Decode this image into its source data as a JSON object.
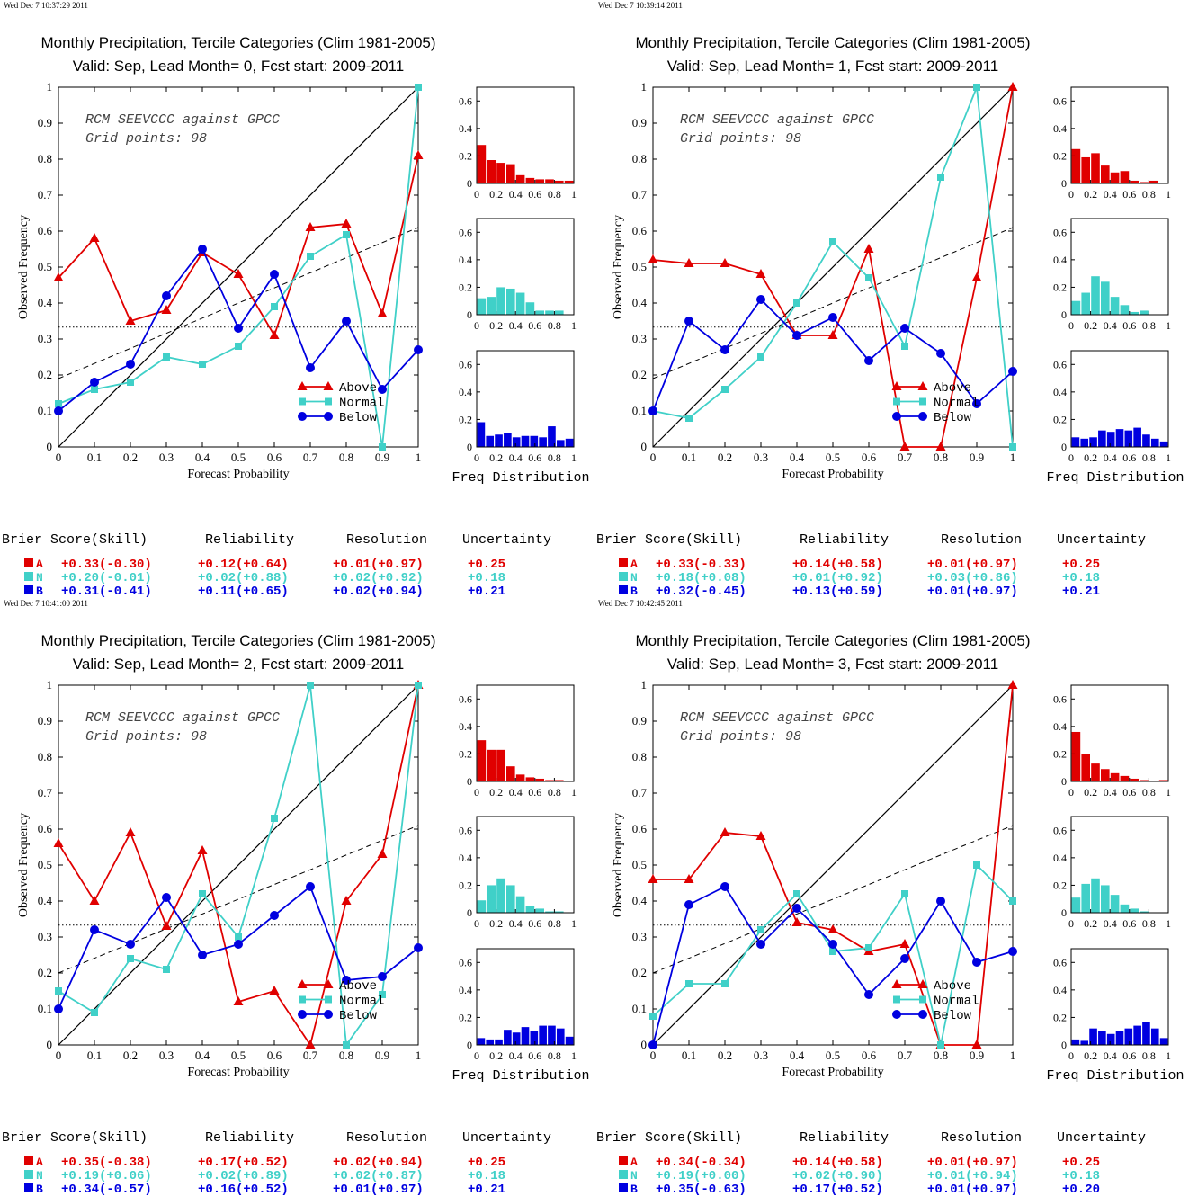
{
  "colors": {
    "above": "#e00000",
    "normal": "#40d0c8",
    "below": "#0000e0",
    "axis": "#000000"
  },
  "common": {
    "xlabel": "Forecast Probability",
    "ylabel": "Observed Frequency",
    "annotation_line1": "RCM SEEVCCC against GPCC",
    "annotation_line2": "Grid points:    98",
    "freq_label": "Freq Distribution",
    "legend": [
      "Above",
      "Normal",
      "Below"
    ],
    "score_header": [
      "Brier Score(Skill)",
      "Reliability",
      "Resolution",
      "Uncertainty"
    ],
    "cat_letters": [
      "A",
      "N",
      "B"
    ],
    "x_ticks": [
      "0",
      "0.1",
      "0.2",
      "0.3",
      "0.4",
      "0.5",
      "0.6",
      "0.7",
      "0.8",
      "0.9",
      "1"
    ],
    "y_ticks": [
      "0",
      "0.1",
      "0.2",
      "0.3",
      "0.4",
      "0.5",
      "0.6",
      "0.7",
      "0.8",
      "0.9",
      "1"
    ],
    "hist_x_ticks": [
      "0",
      "0.2",
      "0.4",
      "0.6",
      "0.8",
      "1"
    ],
    "hist_y_ticks": [
      "0",
      "0.2",
      "0.4",
      "0.6"
    ],
    "climatology": 0.333
  },
  "chart_data": [
    {
      "type": "line",
      "timestamp": "Wed Dec  7 10:37:29 2011",
      "title": "Monthly Precipitation, Tercile Categories (Clim 1981-2005)",
      "subtitle": "Valid: Sep, Lead Month= 0, Fcst start: 2009-2011",
      "x": [
        0,
        0.1,
        0.2,
        0.3,
        0.4,
        0.5,
        0.6,
        0.7,
        0.8,
        0.9,
        1
      ],
      "series": [
        {
          "name": "Above",
          "values": [
            0.47,
            0.58,
            0.35,
            0.38,
            0.54,
            0.48,
            0.31,
            0.61,
            0.62,
            0.37,
            0.81
          ]
        },
        {
          "name": "Normal",
          "values": [
            0.12,
            0.16,
            0.18,
            0.25,
            0.23,
            0.28,
            0.39,
            0.53,
            0.59,
            0.0,
            1.0
          ]
        },
        {
          "name": "Below",
          "values": [
            0.1,
            0.18,
            0.23,
            0.42,
            0.55,
            0.33,
            0.48,
            0.22,
            0.35,
            0.16,
            0.27
          ]
        }
      ],
      "fit_line": [
        0.19,
        0.61
      ],
      "histograms": {
        "Above": [
          0.28,
          0.17,
          0.15,
          0.14,
          0.06,
          0.04,
          0.03,
          0.03,
          0.02,
          0.02
        ],
        "Normal": [
          0.12,
          0.13,
          0.2,
          0.19,
          0.16,
          0.09,
          0.03,
          0.03,
          0.03,
          0.0
        ],
        "Below": [
          0.18,
          0.08,
          0.09,
          0.1,
          0.07,
          0.08,
          0.08,
          0.07,
          0.15,
          0.05,
          0.06
        ]
      },
      "scores": [
        [
          "+0.33(-0.30)",
          "+0.12(+0.64)",
          "+0.01(+0.97)",
          "+0.25"
        ],
        [
          "+0.20(-0.01)",
          "+0.02(+0.88)",
          "+0.02(+0.92)",
          "+0.18"
        ],
        [
          "+0.31(-0.41)",
          "+0.11(+0.65)",
          "+0.02(+0.94)",
          "+0.21"
        ]
      ]
    },
    {
      "type": "line",
      "timestamp": "Wed Dec  7 10:39:14 2011",
      "title": "Monthly Precipitation, Tercile Categories (Clim 1981-2005)",
      "subtitle": "Valid: Sep, Lead Month= 1, Fcst start: 2009-2011",
      "x": [
        0,
        0.1,
        0.2,
        0.3,
        0.4,
        0.5,
        0.6,
        0.7,
        0.8,
        0.9,
        1
      ],
      "series": [
        {
          "name": "Above",
          "values": [
            0.52,
            0.51,
            0.51,
            0.48,
            0.31,
            0.31,
            0.55,
            0.0,
            0.0,
            0.47,
            1.0
          ]
        },
        {
          "name": "Normal",
          "values": [
            0.1,
            0.08,
            0.16,
            0.25,
            0.4,
            0.57,
            0.47,
            0.28,
            0.75,
            1.0,
            0.0
          ]
        },
        {
          "name": "Below",
          "values": [
            0.1,
            0.35,
            0.27,
            0.41,
            0.31,
            0.36,
            0.24,
            0.33,
            0.26,
            0.12,
            0.21
          ]
        }
      ],
      "fit_line": [
        0.19,
        0.61
      ],
      "histograms": {
        "Above": [
          0.25,
          0.19,
          0.22,
          0.13,
          0.08,
          0.09,
          0.02,
          0.01,
          0.02,
          0.0
        ],
        "Normal": [
          0.1,
          0.16,
          0.28,
          0.24,
          0.13,
          0.07,
          0.02,
          0.03,
          0.0,
          0.0
        ],
        "Below": [
          0.07,
          0.06,
          0.07,
          0.12,
          0.11,
          0.13,
          0.12,
          0.14,
          0.09,
          0.06,
          0.04
        ]
      },
      "scores": [
        [
          "+0.33(-0.33)",
          "+0.14(+0.58)",
          "+0.01(+0.97)",
          "+0.25"
        ],
        [
          "+0.18(+0.08)",
          "+0.01(+0.92)",
          "+0.03(+0.86)",
          "+0.18"
        ],
        [
          "+0.32(-0.45)",
          "+0.13(+0.59)",
          "+0.01(+0.97)",
          "+0.21"
        ]
      ]
    },
    {
      "type": "line",
      "timestamp": "Wed Dec  7 10:41:00 2011",
      "title": "Monthly Precipitation, Tercile Categories (Clim 1981-2005)",
      "subtitle": "Valid: Sep, Lead Month= 2, Fcst start: 2009-2011",
      "x": [
        0,
        0.1,
        0.2,
        0.3,
        0.4,
        0.5,
        0.6,
        0.7,
        0.8,
        0.9,
        1
      ],
      "series": [
        {
          "name": "Above",
          "values": [
            0.56,
            0.4,
            0.59,
            0.33,
            0.54,
            0.12,
            0.15,
            0.0,
            0.4,
            0.53,
            1.0
          ]
        },
        {
          "name": "Normal",
          "values": [
            0.15,
            0.09,
            0.24,
            0.21,
            0.42,
            0.3,
            0.63,
            1.0,
            0.0,
            0.14,
            1.0
          ]
        },
        {
          "name": "Below",
          "values": [
            0.1,
            0.32,
            0.28,
            0.41,
            0.25,
            0.28,
            0.36,
            0.44,
            0.18,
            0.19,
            0.27
          ]
        }
      ],
      "fit_line": [
        0.2,
        0.61
      ],
      "histograms": {
        "Above": [
          0.3,
          0.23,
          0.23,
          0.11,
          0.05,
          0.03,
          0.02,
          0.01,
          0.01,
          0.0
        ],
        "Normal": [
          0.09,
          0.2,
          0.25,
          0.2,
          0.12,
          0.05,
          0.03,
          0.01,
          0.01,
          0.0
        ],
        "Below": [
          0.05,
          0.04,
          0.04,
          0.11,
          0.09,
          0.13,
          0.1,
          0.14,
          0.14,
          0.12,
          0.06
        ]
      },
      "scores": [
        [
          "+0.35(-0.38)",
          "+0.17(+0.52)",
          "+0.02(+0.94)",
          "+0.25"
        ],
        [
          "+0.19(+0.06)",
          "+0.02(+0.89)",
          "+0.02(+0.87)",
          "+0.18"
        ],
        [
          "+0.34(-0.57)",
          "+0.16(+0.52)",
          "+0.01(+0.97)",
          "+0.21"
        ]
      ]
    },
    {
      "type": "line",
      "timestamp": "Wed Dec  7 10:42:45 2011",
      "title": "Monthly Precipitation, Tercile Categories (Clim 1981-2005)",
      "subtitle": "Valid: Sep, Lead Month= 3, Fcst start: 2009-2011",
      "x": [
        0,
        0.1,
        0.2,
        0.3,
        0.4,
        0.5,
        0.6,
        0.7,
        0.8,
        0.9,
        1
      ],
      "series": [
        {
          "name": "Above",
          "values": [
            0.46,
            0.46,
            0.59,
            0.58,
            0.34,
            0.32,
            0.26,
            0.28,
            0.0,
            0.0,
            1.0
          ]
        },
        {
          "name": "Normal",
          "values": [
            0.08,
            0.17,
            0.17,
            0.32,
            0.42,
            0.26,
            0.27,
            0.42,
            0.0,
            0.5,
            0.4
          ]
        },
        {
          "name": "Below",
          "values": [
            0.0,
            0.39,
            0.44,
            0.28,
            0.38,
            0.28,
            0.14,
            0.24,
            0.4,
            0.23,
            0.26
          ]
        }
      ],
      "fit_line": [
        0.2,
        0.61
      ],
      "histograms": {
        "Above": [
          0.36,
          0.2,
          0.13,
          0.09,
          0.06,
          0.04,
          0.02,
          0.01,
          0.0,
          0.01
        ],
        "Normal": [
          0.11,
          0.21,
          0.25,
          0.2,
          0.13,
          0.06,
          0.03,
          0.01,
          0.0,
          0.0
        ],
        "Below": [
          0.04,
          0.03,
          0.12,
          0.1,
          0.08,
          0.1,
          0.12,
          0.14,
          0.17,
          0.12,
          0.05
        ]
      },
      "scores": [
        [
          "+0.34(-0.34)",
          "+0.14(+0.58)",
          "+0.01(+0.97)",
          "+0.25"
        ],
        [
          "+0.19(+0.00)",
          "+0.02(+0.90)",
          "+0.01(+0.94)",
          "+0.18"
        ],
        [
          "+0.35(-0.63)",
          "+0.17(+0.52)",
          "+0.01(+0.97)",
          "+0.20"
        ]
      ]
    }
  ]
}
